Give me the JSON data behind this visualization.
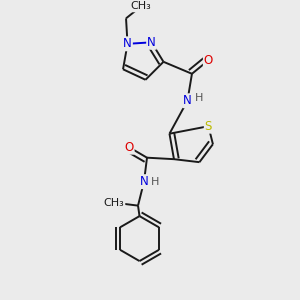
{
  "background_color": "#ebebeb",
  "bond_color": "#1a1a1a",
  "N_color": "#0000dd",
  "O_color": "#dd0000",
  "S_color": "#bbbb00",
  "H_color": "#555555",
  "line_width": 1.4,
  "font_size": 8.5,
  "fig_width": 3.0,
  "fig_height": 3.0,
  "dpi": 100,
  "xlim": [
    0.0,
    1.0
  ],
  "ylim": [
    0.0,
    1.0
  ]
}
